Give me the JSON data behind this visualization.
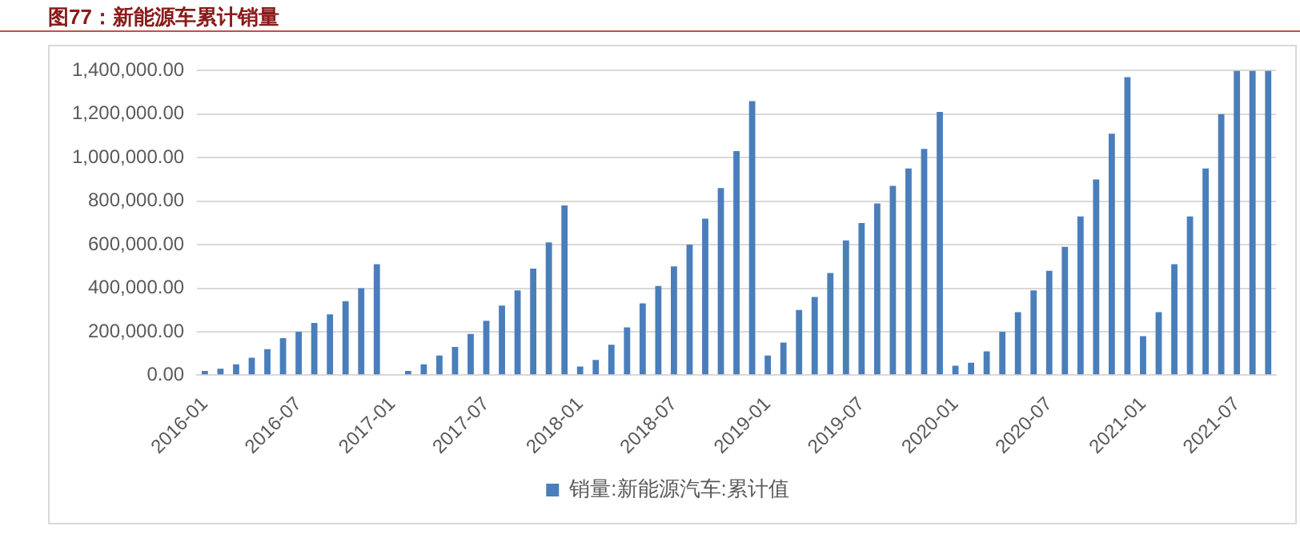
{
  "chart_data": {
    "type": "bar",
    "title": "图77：新能源车累计销量",
    "categories": [
      "2016-01",
      null,
      null,
      null,
      null,
      null,
      "2016-07",
      null,
      null,
      null,
      null,
      null,
      "2017-01",
      null,
      null,
      null,
      null,
      null,
      "2017-07",
      null,
      null,
      null,
      null,
      null,
      "2018-01",
      null,
      null,
      null,
      null,
      null,
      "2018-07",
      null,
      null,
      null,
      null,
      null,
      "2019-01",
      null,
      null,
      null,
      null,
      null,
      "2019-07",
      null,
      null,
      null,
      null,
      null,
      "2020-01",
      null,
      null,
      null,
      null,
      null,
      "2020-07",
      null,
      null,
      null,
      null,
      null,
      "2021-01",
      null,
      null,
      null,
      null,
      null,
      "2021-07",
      null,
      null
    ],
    "series": [
      {
        "name": "销量:新能源汽车:累计值",
        "color": "#4a7ebb",
        "values": [
          20000,
          30000,
          50000,
          80000,
          120000,
          170000,
          200000,
          240000,
          280000,
          340000,
          400000,
          510000,
          4000,
          20000,
          50000,
          90000,
          130000,
          190000,
          250000,
          320000,
          390000,
          490000,
          610000,
          780000,
          40000,
          70000,
          140000,
          220000,
          330000,
          410000,
          500000,
          600000,
          720000,
          860000,
          1030000,
          1260000,
          90000,
          150000,
          300000,
          360000,
          470000,
          620000,
          700000,
          790000,
          870000,
          950000,
          1040000,
          1210000,
          44000,
          57000,
          110000,
          200000,
          290000,
          390000,
          480000,
          590000,
          730000,
          900000,
          1110000,
          1370000,
          180000,
          290000,
          510000,
          730000,
          950000,
          1200000,
          1400000,
          1400000,
          1400000
        ]
      }
    ],
    "ylim": [
      0,
      1400000
    ],
    "yticks": [
      {
        "value": 0,
        "label": "0.00"
      },
      {
        "value": 200000,
        "label": "200,000.00"
      },
      {
        "value": 400000,
        "label": "400,000.00"
      },
      {
        "value": 600000,
        "label": "600,000.00"
      },
      {
        "value": 800000,
        "label": "800,000.00"
      },
      {
        "value": 1000000,
        "label": "1,000,000.00"
      },
      {
        "value": 1200000,
        "label": "1,200,000.00"
      },
      {
        "value": 1400000,
        "label": "1,400,000.00"
      }
    ],
    "grid": "y",
    "legend": "bottom"
  }
}
